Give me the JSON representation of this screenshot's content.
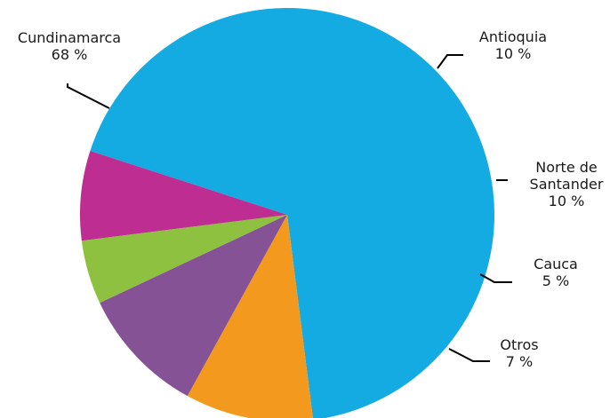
{
  "chart_data": {
    "type": "pie",
    "categories": [
      "Cundinamarca",
      "Antioquia",
      "Norte de Santander",
      "Cauca",
      "Otros"
    ],
    "values": [
      68,
      10,
      10,
      5,
      7
    ],
    "labels": [
      {
        "name_lines": [
          "Cundinamarca"
        ],
        "value_text": "68 %"
      },
      {
        "name_lines": [
          "Antioquia"
        ],
        "value_text": "10 %"
      },
      {
        "name_lines": [
          "Norte de",
          "Santander"
        ],
        "value_text": "10 %"
      },
      {
        "name_lines": [
          "Cauca"
        ],
        "value_text": "5 %"
      },
      {
        "name_lines": [
          "Otros"
        ],
        "value_text": "7 %"
      }
    ],
    "colors": [
      "#14ABE3",
      "#F39A1E",
      "#855296",
      "#8DC13F",
      "#BE2D92"
    ],
    "legend": "none",
    "grid": false,
    "title": "",
    "xlabel": "",
    "ylabel": ""
  }
}
